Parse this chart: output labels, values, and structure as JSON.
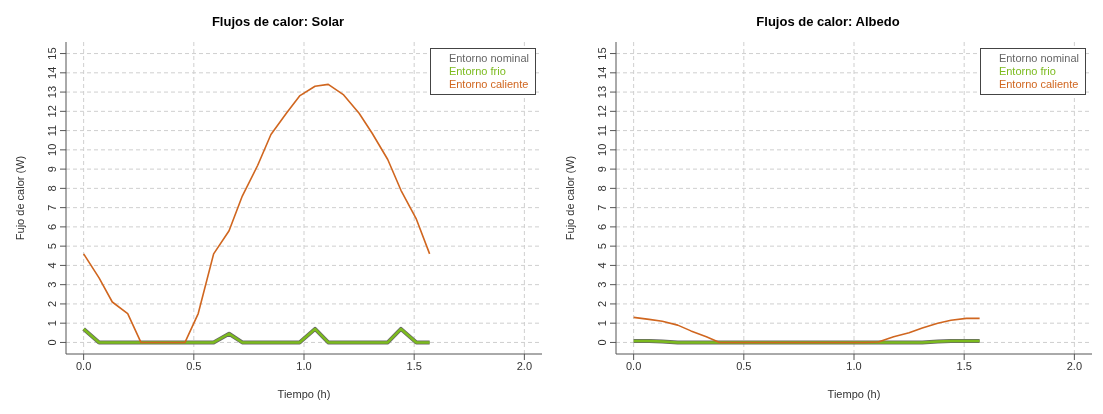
{
  "chart_data": [
    {
      "type": "line",
      "title": "Flujos de calor: Solar",
      "xlabel": "Tiempo (h)",
      "ylabel": "Fujo de calor (W)",
      "x": [
        0,
        0.07,
        0.13,
        0.2,
        0.26,
        0.33,
        0.39,
        0.46,
        0.52,
        0.59,
        0.66,
        0.72,
        0.79,
        0.85,
        0.92,
        0.98,
        1.05,
        1.11,
        1.18,
        1.25,
        1.31,
        1.38,
        1.44,
        1.51,
        1.57
      ],
      "xlim": [
        -0.08,
        2.08
      ],
      "xticks": [
        {
          "value": 0,
          "label": "0.0"
        },
        {
          "value": 0.5,
          "label": "0.5"
        },
        {
          "value": 1,
          "label": "1.0"
        },
        {
          "value": 1.5,
          "label": "1.5"
        },
        {
          "value": 2,
          "label": "2.0"
        }
      ],
      "ylim": [
        -0.6,
        15.6
      ],
      "yticks": [
        0,
        1,
        2,
        3,
        4,
        5,
        6,
        7,
        8,
        9,
        10,
        11,
        12,
        13,
        14,
        15
      ],
      "grid": true,
      "legend": "top right",
      "marker": "none",
      "line_style": "solid",
      "series": [
        {
          "name": "Entorno nominal",
          "color": "#666666",
          "values": [
            0.7,
            0,
            0,
            0,
            0,
            0,
            0,
            0,
            0,
            0,
            0.45,
            0,
            0,
            0,
            0,
            0,
            0.7,
            0,
            0,
            0,
            0,
            0,
            0.7,
            0,
            0
          ]
        },
        {
          "name": "Entorno frio",
          "color": "#7cbb1e",
          "values": [
            0.7,
            0,
            0,
            0,
            0,
            0,
            0,
            0,
            0,
            0,
            0.45,
            0,
            0,
            0,
            0,
            0,
            0.7,
            0,
            0,
            0,
            0,
            0,
            0.7,
            0,
            0
          ]
        },
        {
          "name": "Entorno caliente",
          "color": "#d0661f",
          "values": [
            4.6,
            3.35,
            2.1,
            1.5,
            0,
            0,
            0,
            0,
            1.5,
            4.6,
            5.8,
            7.6,
            9.2,
            10.8,
            11.9,
            12.8,
            13.3,
            13.4,
            12.85,
            11.9,
            10.85,
            9.5,
            7.9,
            6.4,
            4.6
          ]
        }
      ]
    },
    {
      "type": "line",
      "title": "Flujos de calor: Albedo",
      "xlabel": "Tiempo (h)",
      "ylabel": "Fujo de calor (W)",
      "x": [
        0,
        0.07,
        0.13,
        0.2,
        0.26,
        0.33,
        0.39,
        0.46,
        0.52,
        0.59,
        0.66,
        0.72,
        0.79,
        0.85,
        0.92,
        0.98,
        1.05,
        1.11,
        1.18,
        1.25,
        1.31,
        1.38,
        1.44,
        1.51,
        1.57
      ],
      "xlim": [
        -0.08,
        2.08
      ],
      "xticks": [
        {
          "value": 0,
          "label": "0.0"
        },
        {
          "value": 0.5,
          "label": "0.5"
        },
        {
          "value": 1,
          "label": "1.0"
        },
        {
          "value": 1.5,
          "label": "1.5"
        },
        {
          "value": 2,
          "label": "2.0"
        }
      ],
      "ylim": [
        -0.6,
        15.6
      ],
      "yticks": [
        0,
        1,
        2,
        3,
        4,
        5,
        6,
        7,
        8,
        9,
        10,
        11,
        12,
        13,
        14,
        15
      ],
      "grid": true,
      "legend": "top right",
      "marker": "none",
      "line_style": "solid",
      "series": [
        {
          "name": "Entorno nominal",
          "color": "#666666",
          "values": [
            0.08,
            0.08,
            0.05,
            0,
            0,
            0,
            0,
            0,
            0,
            0,
            0,
            0,
            0,
            0,
            0,
            0,
            0,
            0,
            0,
            0,
            0,
            0.05,
            0.08,
            0.08,
            0.08
          ]
        },
        {
          "name": "Entorno frio",
          "color": "#7cbb1e",
          "values": [
            0.08,
            0.08,
            0.05,
            0,
            0,
            0,
            0,
            0,
            0,
            0,
            0,
            0,
            0,
            0,
            0,
            0,
            0,
            0,
            0,
            0,
            0,
            0.05,
            0.08,
            0.08,
            0.08
          ]
        },
        {
          "name": "Entorno caliente",
          "color": "#d0661f",
          "values": [
            1.3,
            1.2,
            1.1,
            0.9,
            0.6,
            0.3,
            0,
            0,
            0,
            0,
            0,
            0,
            0,
            0,
            0,
            0,
            0,
            0.02,
            0.3,
            0.5,
            0.75,
            1.0,
            1.15,
            1.25,
            1.25
          ]
        }
      ]
    }
  ]
}
